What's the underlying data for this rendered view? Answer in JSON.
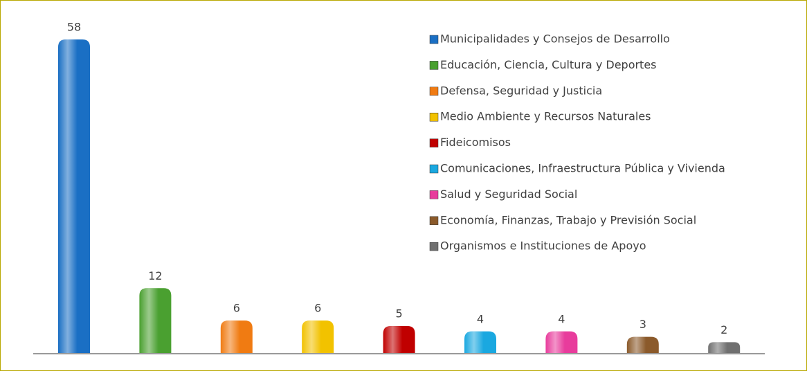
{
  "chart_data": {
    "type": "bar",
    "categories": [
      "Municipalidades y Consejos de Desarrollo",
      "Educación, Ciencia, Cultura y Deportes",
      "Defensa, Seguridad y Justicia",
      "Medio Ambiente y Recursos Naturales",
      "Fideicomisos",
      "Comunicaciones, Infraestructura Pública y Vivienda",
      "Salud y Seguridad Social",
      "Economía, Finanzas, Trabajo y Previsión Social",
      "Organismos e Instituciones de Apoyo"
    ],
    "values": [
      58,
      12,
      6,
      6,
      5,
      4,
      4,
      3,
      2
    ],
    "colors": [
      "#1a6fc4",
      "#4aa030",
      "#f07b12",
      "#f2c200",
      "#c00000",
      "#1aa8e0",
      "#e83c9c",
      "#8b5a2b",
      "#707070"
    ],
    "legend": "top-right"
  }
}
